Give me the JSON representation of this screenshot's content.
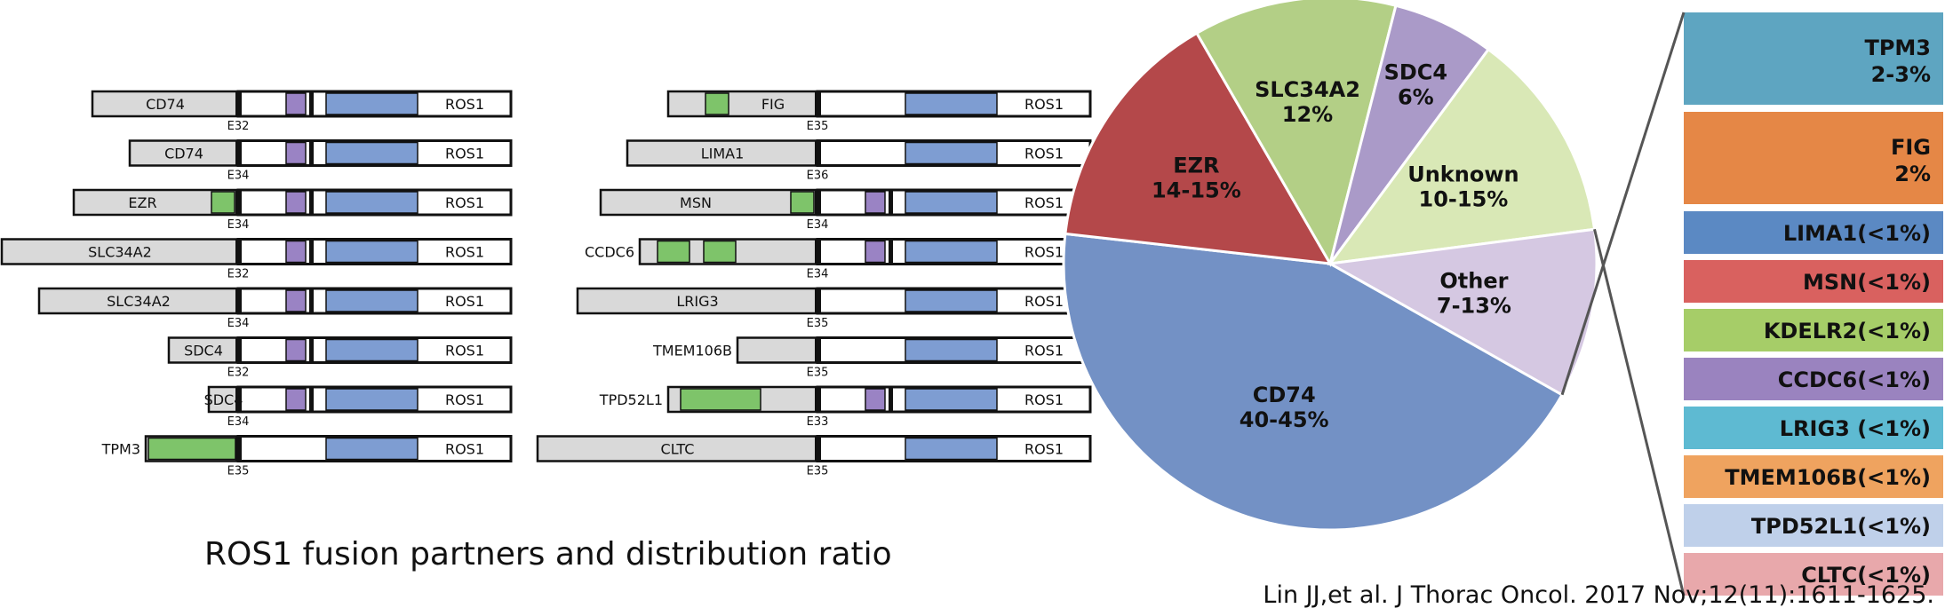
{
  "caption": {
    "title": "ROS1 fusion partners and distribution ratio",
    "citation": "Lin JJ,et al. J Thorac Oncol. 2017 Nov;12(11):1611-1625."
  },
  "colors": {
    "partner_box": "#d9d9d9",
    "kinase": "#7e9dd2",
    "coiled_coil": "#7ec46a",
    "transmembrane": "#9a83c4",
    "outline": "#111111"
  },
  "fusion_diagrams": {
    "left_column": [
      {
        "partner": "CD74",
        "exon": "E32",
        "partner_label_inside": true,
        "coils": 0,
        "tm": true
      },
      {
        "partner": "CD74",
        "exon": "E34",
        "partner_label_inside": true,
        "coils": 0,
        "tm": true
      },
      {
        "partner": "EZR",
        "exon": "E34",
        "partner_label_inside": true,
        "coils": 1,
        "tm": true
      },
      {
        "partner": "SLC34A2",
        "exon": "E32",
        "partner_label_inside": true,
        "coils": 0,
        "tm": true
      },
      {
        "partner": "SLC34A2",
        "exon": "E34",
        "partner_label_inside": true,
        "coils": 0,
        "tm": true
      },
      {
        "partner": "SDC4",
        "exon": "E32",
        "partner_label_inside": true,
        "coils": 0,
        "tm": true
      },
      {
        "partner": "SDC4",
        "exon": "E34",
        "partner_label_inside": true,
        "coils": 0,
        "tm": true
      },
      {
        "partner": "TPM3",
        "exon": "E35",
        "partner_label_inside": false,
        "coils": 1,
        "tm": false
      }
    ],
    "right_column": [
      {
        "partner": "FIG",
        "exon": "E35",
        "partner_label_inside": true,
        "coils": 1,
        "tm": false
      },
      {
        "partner": "LIMA1",
        "exon": "E36",
        "partner_label_inside": true,
        "coils": 0,
        "tm": false
      },
      {
        "partner": "MSN",
        "exon": "E34",
        "partner_label_inside": true,
        "coils": 1,
        "tm": true
      },
      {
        "partner": "CCDC6",
        "exon": "E34",
        "partner_label_inside": false,
        "coils": 2,
        "tm": true
      },
      {
        "partner": "LRIG3",
        "exon": "E35",
        "partner_label_inside": true,
        "coils": 0,
        "tm": false
      },
      {
        "partner": "TMEM106B",
        "exon": "E35",
        "partner_label_inside": false,
        "coils": 0,
        "tm": false
      },
      {
        "partner": "TPD52L1",
        "exon": "E33",
        "partner_label_inside": false,
        "coils": 1,
        "tm": true
      },
      {
        "partner": "CLTC",
        "exon": "E35",
        "partner_label_inside": true,
        "coils": 0,
        "tm": false
      }
    ],
    "kinase_label": "ROS1"
  },
  "chart_data": {
    "type": "pie",
    "title": "",
    "slices": [
      {
        "label": "CD74",
        "range": "40-45%",
        "value": 42.5,
        "color": "#7391c5"
      },
      {
        "label": "EZR",
        "range": "14-15%",
        "value": 14.5,
        "color": "#b4484a"
      },
      {
        "label": "SLC34A2",
        "range": "12%",
        "value": 12,
        "color": "#b3cf86"
      },
      {
        "label": "SDC4",
        "range": "6%",
        "value": 6,
        "color": "#aa9ac8"
      },
      {
        "label": "Unknown",
        "range": "10-15%",
        "value": 12.5,
        "color": "#d9e8b6"
      },
      {
        "label": "Other",
        "range": "7-13%",
        "value": 10,
        "color": "#d5c8e2"
      }
    ],
    "other_breakdown": [
      {
        "label": "TPM3",
        "range": "2-3%",
        "color": "#5ea5c1"
      },
      {
        "label": "FIG",
        "range": "2%",
        "color": "#e58746"
      },
      {
        "label": "LIMA1",
        "range": "(<1%)",
        "color": "#5b89c3"
      },
      {
        "label": "MSN",
        "range": "(<1%)",
        "color": "#d9615f"
      },
      {
        "label": "KDELR2",
        "range": "(<1%)",
        "color": "#a6cd68"
      },
      {
        "label": "CCDC6",
        "range": "(<1%)",
        "color": "#9a83bf"
      },
      {
        "label": "LRIG3",
        "range": " (<1%)",
        "color": "#5ebad2"
      },
      {
        "label": "TMEM106B",
        "range": "(<1%)",
        "color": "#efa35f"
      },
      {
        "label": "TPD52L1",
        "range": "(<1%)",
        "color": "#bfd0ea"
      },
      {
        "label": "CLTC",
        "range": "(<1%)",
        "color": "#e8a8ab"
      }
    ]
  }
}
